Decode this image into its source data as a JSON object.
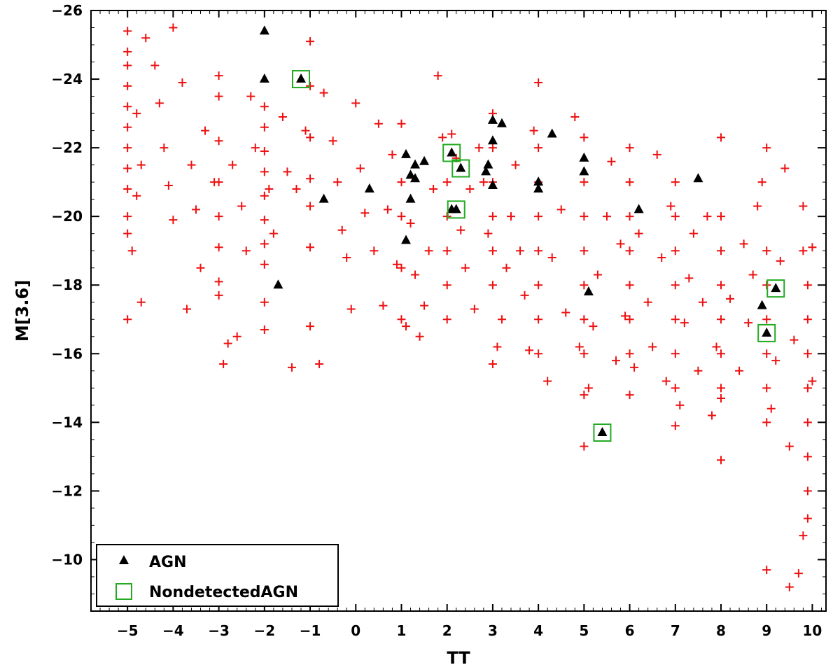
{
  "chart_data": {
    "type": "scatter",
    "xlabel": "TT",
    "ylabel": "M[3.6]",
    "xlim": [
      -5.8,
      10.3
    ],
    "ylim": [
      -8.5,
      -26
    ],
    "y_inverted": true,
    "x_ticks": [
      -5,
      -4,
      -3,
      -2,
      -1,
      0,
      1,
      2,
      3,
      4,
      5,
      6,
      7,
      8,
      9,
      10
    ],
    "x_tick_labels": [
      "−5",
      "−4",
      "−3",
      "−2",
      "−1",
      "0",
      "1",
      "2",
      "3",
      "4",
      "5",
      "6",
      "7",
      "8",
      "9",
      "10"
    ],
    "y_ticks": [
      -26,
      -24,
      -22,
      -20,
      -18,
      -16,
      -14,
      -12,
      -10
    ],
    "y_tick_labels": [
      "−26",
      "−24",
      "−22",
      "−20",
      "−18",
      "−16",
      "−14",
      "−12",
      "−10"
    ],
    "grid": false,
    "legend": {
      "position": "bottom-left",
      "entries": [
        {
          "label": "AGN",
          "marker": "triangle",
          "color": "#000000"
        },
        {
          "label": "NondetectedAGN",
          "marker": "open-square",
          "color": "#22aa22"
        }
      ]
    },
    "series": [
      {
        "name": "AGN",
        "marker": "triangle",
        "color": "#000000",
        "points": [
          [
            -2.0,
            -25.4
          ],
          [
            -2.0,
            -24.0
          ],
          [
            -1.2,
            -24.0
          ],
          [
            -0.7,
            -20.5
          ],
          [
            -1.7,
            -18.0
          ],
          [
            0.3,
            -20.8
          ],
          [
            1.1,
            -21.8
          ],
          [
            1.2,
            -21.2
          ],
          [
            1.3,
            -21.5
          ],
          [
            1.3,
            -21.1
          ],
          [
            1.5,
            -21.6
          ],
          [
            1.1,
            -19.3
          ],
          [
            1.2,
            -20.5
          ],
          [
            2.1,
            -21.85
          ],
          [
            2.3,
            -21.4
          ],
          [
            2.1,
            -20.2
          ],
          [
            2.2,
            -20.2
          ],
          [
            2.85,
            -21.3
          ],
          [
            2.9,
            -21.5
          ],
          [
            3.0,
            -22.8
          ],
          [
            3.0,
            -22.2
          ],
          [
            3.0,
            -20.9
          ],
          [
            3.2,
            -22.7
          ],
          [
            4.0,
            -21.0
          ],
          [
            4.0,
            -20.8
          ],
          [
            4.3,
            -22.4
          ],
          [
            5.0,
            -21.7
          ],
          [
            5.0,
            -21.3
          ],
          [
            5.1,
            -17.8
          ],
          [
            5.4,
            -13.7
          ],
          [
            6.2,
            -20.2
          ],
          [
            7.5,
            -21.1
          ],
          [
            8.9,
            -17.4
          ],
          [
            9.0,
            -16.6
          ],
          [
            9.2,
            -17.9
          ]
        ]
      },
      {
        "name": "NondetectedAGN",
        "marker": "open-square",
        "color": "#22aa22",
        "points": [
          [
            -1.2,
            -24.0
          ],
          [
            2.1,
            -21.85
          ],
          [
            2.3,
            -21.4
          ],
          [
            2.2,
            -20.2
          ],
          [
            5.4,
            -13.7
          ],
          [
            9.0,
            -16.6
          ],
          [
            9.2,
            -17.9
          ]
        ]
      },
      {
        "marker": "plus",
        "color": "#ee1111",
        "points": [
          [
            -5,
            -25.4
          ],
          [
            -5,
            -24.8
          ],
          [
            -5,
            -24.4
          ],
          [
            -5,
            -23.8
          ],
          [
            -5,
            -23.2
          ],
          [
            -5,
            -22.6
          ],
          [
            -5,
            -22.0
          ],
          [
            -5,
            -21.4
          ],
          [
            -5,
            -20.8
          ],
          [
            -5,
            -20.0
          ],
          [
            -5,
            -19.5
          ],
          [
            -5,
            -17.0
          ],
          [
            -4.8,
            -23.0
          ],
          [
            -4.7,
            -21.5
          ],
          [
            -4.8,
            -20.6
          ],
          [
            -4.9,
            -19.0
          ],
          [
            -4.7,
            -17.5
          ],
          [
            -4.6,
            -25.2
          ],
          [
            -4.4,
            -24.4
          ],
          [
            -4.3,
            -23.3
          ],
          [
            -4.2,
            -22.0
          ],
          [
            -4.1,
            -20.9
          ],
          [
            -4.0,
            -19.9
          ],
          [
            -4.0,
            -25.5
          ],
          [
            -3.8,
            -23.9
          ],
          [
            -3.6,
            -21.5
          ],
          [
            -3.5,
            -20.2
          ],
          [
            -3.7,
            -17.3
          ],
          [
            -3.4,
            -18.5
          ],
          [
            -3.3,
            -22.5
          ],
          [
            -3.1,
            -21.0
          ],
          [
            -3.0,
            -24.1
          ],
          [
            -3.0,
            -23.5
          ],
          [
            -3.0,
            -22.2
          ],
          [
            -3.0,
            -21.0
          ],
          [
            -3.0,
            -20.0
          ],
          [
            -3.0,
            -19.1
          ],
          [
            -3.0,
            -18.1
          ],
          [
            -3.0,
            -17.7
          ],
          [
            -2.9,
            -15.7
          ],
          [
            -2.8,
            -16.3
          ],
          [
            -2.6,
            -16.5
          ],
          [
            -2.7,
            -21.5
          ],
          [
            -2.5,
            -20.3
          ],
          [
            -2.4,
            -19.0
          ],
          [
            -2.3,
            -23.5
          ],
          [
            -2.2,
            -22.0
          ],
          [
            -2.0,
            -23.2
          ],
          [
            -2.0,
            -22.6
          ],
          [
            -2.0,
            -21.9
          ],
          [
            -2.0,
            -21.3
          ],
          [
            -2.0,
            -20.6
          ],
          [
            -2.0,
            -19.9
          ],
          [
            -2.0,
            -19.2
          ],
          [
            -2.0,
            -18.6
          ],
          [
            -2.0,
            -17.5
          ],
          [
            -2.0,
            -16.7
          ],
          [
            -1.9,
            -20.8
          ],
          [
            -1.8,
            -19.5
          ],
          [
            -1.6,
            -22.9
          ],
          [
            -1.5,
            -21.3
          ],
          [
            -1.4,
            -15.6
          ],
          [
            -1.3,
            -20.8
          ],
          [
            -1.1,
            -22.5
          ],
          [
            -1.0,
            -25.1
          ],
          [
            -1.0,
            -23.8
          ],
          [
            -1.0,
            -22.3
          ],
          [
            -1.0,
            -21.1
          ],
          [
            -1.0,
            -20.3
          ],
          [
            -1.0,
            -19.1
          ],
          [
            -1.0,
            -16.8
          ],
          [
            -0.8,
            -15.7
          ],
          [
            -0.7,
            -23.6
          ],
          [
            -0.5,
            -22.2
          ],
          [
            -0.4,
            -21.0
          ],
          [
            -0.3,
            -19.6
          ],
          [
            -0.2,
            -18.8
          ],
          [
            -0.1,
            -17.3
          ],
          [
            0.0,
            -23.3
          ],
          [
            0.1,
            -21.4
          ],
          [
            0.2,
            -20.1
          ],
          [
            0.4,
            -19.0
          ],
          [
            0.5,
            -22.7
          ],
          [
            0.6,
            -17.4
          ],
          [
            0.7,
            -20.2
          ],
          [
            0.8,
            -21.8
          ],
          [
            0.9,
            -18.6
          ],
          [
            1.0,
            -22.7
          ],
          [
            1.0,
            -21.0
          ],
          [
            1.0,
            -20.0
          ],
          [
            1.0,
            -18.5
          ],
          [
            1.0,
            -17.0
          ],
          [
            1.1,
            -16.8
          ],
          [
            1.2,
            -19.8
          ],
          [
            1.3,
            -18.3
          ],
          [
            1.4,
            -16.5
          ],
          [
            1.5,
            -17.4
          ],
          [
            1.6,
            -19.0
          ],
          [
            1.7,
            -20.8
          ],
          [
            1.8,
            -24.1
          ],
          [
            1.9,
            -22.3
          ],
          [
            2.0,
            -21.0
          ],
          [
            2.0,
            -20.0
          ],
          [
            2.0,
            -19.0
          ],
          [
            2.0,
            -18.0
          ],
          [
            2.0,
            -17.0
          ],
          [
            2.1,
            -22.4
          ],
          [
            2.2,
            -21.7
          ],
          [
            2.3,
            -19.6
          ],
          [
            2.4,
            -18.5
          ],
          [
            2.5,
            -20.8
          ],
          [
            2.6,
            -17.3
          ],
          [
            2.7,
            -22.0
          ],
          [
            2.8,
            -21.0
          ],
          [
            2.9,
            -19.5
          ],
          [
            3.0,
            -23.0
          ],
          [
            3.0,
            -22.0
          ],
          [
            3.0,
            -21.0
          ],
          [
            3.0,
            -20.0
          ],
          [
            3.0,
            -19.0
          ],
          [
            3.0,
            -18.0
          ],
          [
            3.0,
            -15.7
          ],
          [
            3.1,
            -16.2
          ],
          [
            3.2,
            -17.0
          ],
          [
            3.3,
            -18.5
          ],
          [
            3.4,
            -20.0
          ],
          [
            3.5,
            -21.5
          ],
          [
            3.6,
            -19.0
          ],
          [
            3.7,
            -17.7
          ],
          [
            3.8,
            -16.1
          ],
          [
            3.9,
            -22.5
          ],
          [
            4.0,
            -23.9
          ],
          [
            4.0,
            -22.0
          ],
          [
            4.0,
            -21.0
          ],
          [
            4.0,
            -20.0
          ],
          [
            4.0,
            -19.0
          ],
          [
            4.0,
            -18.0
          ],
          [
            4.0,
            -17.0
          ],
          [
            4.0,
            -16.0
          ],
          [
            4.2,
            -15.2
          ],
          [
            4.3,
            -18.8
          ],
          [
            4.5,
            -20.2
          ],
          [
            4.6,
            -17.2
          ],
          [
            4.8,
            -22.9
          ],
          [
            4.9,
            -16.2
          ],
          [
            5.0,
            -22.3
          ],
          [
            5.0,
            -21.0
          ],
          [
            5.0,
            -20.0
          ],
          [
            5.0,
            -19.0
          ],
          [
            5.0,
            -18.0
          ],
          [
            5.0,
            -17.0
          ],
          [
            5.0,
            -16.0
          ],
          [
            5.0,
            -14.8
          ],
          [
            5.0,
            -13.3
          ],
          [
            5.1,
            -15.0
          ],
          [
            5.2,
            -16.8
          ],
          [
            5.3,
            -18.3
          ],
          [
            5.5,
            -20.0
          ],
          [
            5.6,
            -21.6
          ],
          [
            5.7,
            -15.8
          ],
          [
            5.8,
            -19.2
          ],
          [
            5.9,
            -17.1
          ],
          [
            6.0,
            -22.0
          ],
          [
            6.0,
            -21.0
          ],
          [
            6.0,
            -20.0
          ],
          [
            6.0,
            -19.0
          ],
          [
            6.0,
            -18.0
          ],
          [
            6.0,
            -17.0
          ],
          [
            6.0,
            -16.0
          ],
          [
            6.0,
            -14.8
          ],
          [
            6.1,
            -15.6
          ],
          [
            6.2,
            -19.5
          ],
          [
            6.4,
            -17.5
          ],
          [
            6.5,
            -16.2
          ],
          [
            6.6,
            -21.8
          ],
          [
            6.7,
            -18.8
          ],
          [
            6.8,
            -15.2
          ],
          [
            6.9,
            -20.3
          ],
          [
            7.0,
            -21.0
          ],
          [
            7.0,
            -20.0
          ],
          [
            7.0,
            -19.0
          ],
          [
            7.0,
            -18.0
          ],
          [
            7.0,
            -17.0
          ],
          [
            7.0,
            -16.0
          ],
          [
            7.0,
            -15.0
          ],
          [
            7.0,
            -13.9
          ],
          [
            7.1,
            -14.5
          ],
          [
            7.2,
            -16.9
          ],
          [
            7.3,
            -18.2
          ],
          [
            7.4,
            -19.5
          ],
          [
            7.5,
            -15.5
          ],
          [
            7.6,
            -17.5
          ],
          [
            7.7,
            -20.0
          ],
          [
            7.8,
            -14.2
          ],
          [
            7.9,
            -16.2
          ],
          [
            8.0,
            -22.3
          ],
          [
            8.0,
            -20.0
          ],
          [
            8.0,
            -19.0
          ],
          [
            8.0,
            -18.0
          ],
          [
            8.0,
            -17.0
          ],
          [
            8.0,
            -16.0
          ],
          [
            8.0,
            -15.0
          ],
          [
            8.0,
            -14.7
          ],
          [
            8.0,
            -12.9
          ],
          [
            8.2,
            -17.6
          ],
          [
            8.4,
            -15.5
          ],
          [
            8.5,
            -19.2
          ],
          [
            8.6,
            -16.9
          ],
          [
            8.7,
            -18.3
          ],
          [
            8.8,
            -20.3
          ],
          [
            8.9,
            -21.0
          ],
          [
            9.0,
            -22.0
          ],
          [
            9.0,
            -19.0
          ],
          [
            9.0,
            -18.0
          ],
          [
            9.0,
            -17.0
          ],
          [
            9.0,
            -16.0
          ],
          [
            9.0,
            -15.0
          ],
          [
            9.0,
            -14.0
          ],
          [
            9.0,
            -9.7
          ],
          [
            9.1,
            -14.4
          ],
          [
            9.2,
            -15.8
          ],
          [
            9.3,
            -18.7
          ],
          [
            9.4,
            -21.4
          ],
          [
            9.5,
            -13.3
          ],
          [
            9.6,
            -16.4
          ],
          [
            9.7,
            -9.6
          ],
          [
            9.5,
            -9.2
          ],
          [
            9.8,
            -20.3
          ],
          [
            9.8,
            -19.0
          ],
          [
            9.9,
            -18.0
          ],
          [
            9.9,
            -17.0
          ],
          [
            9.9,
            -16.0
          ],
          [
            9.9,
            -15.0
          ],
          [
            9.9,
            -14.0
          ],
          [
            9.9,
            -13.0
          ],
          [
            9.9,
            -12.0
          ],
          [
            9.9,
            -11.2
          ],
          [
            9.8,
            -10.7
          ],
          [
            10.0,
            -19.1
          ],
          [
            10.0,
            -15.2
          ]
        ]
      }
    ]
  }
}
